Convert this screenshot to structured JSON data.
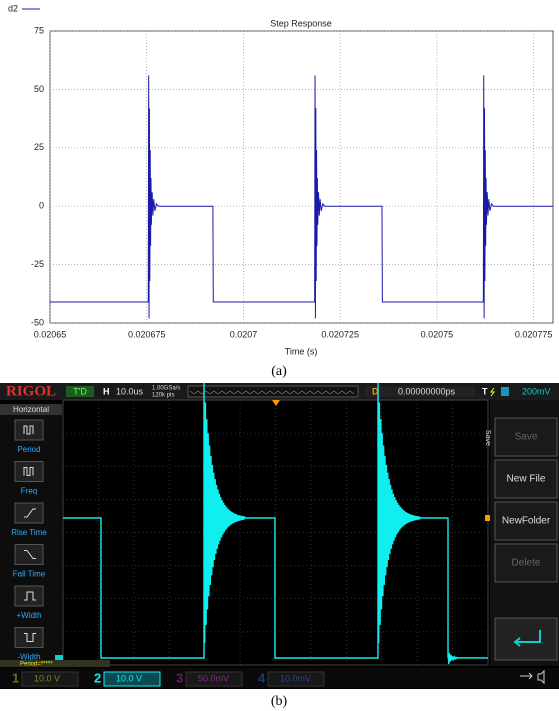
{
  "chart_data": {
    "type": "line",
    "title": "Step Response",
    "xlabel": "Time (s)",
    "x": [
      0.02065,
      0.0206754,
      0.0206755,
      0.0206756,
      0.0206757,
      0.0206758,
      0.0206759,
      0.020676,
      0.0206761,
      0.0206762,
      0.0206764,
      0.0206766,
      0.0206768,
      0.0206771,
      0.0206775,
      0.020678,
      0.0206921,
      0.0206922,
      0.0207184,
      0.0207185,
      0.0207186,
      0.0207187,
      0.0207188,
      0.0207189,
      0.020719,
      0.0207191,
      0.0207192,
      0.0207194,
      0.0207196,
      0.0207198,
      0.0207201,
      0.0207205,
      0.020721,
      0.0207358,
      0.0207359,
      0.020762,
      0.0207621,
      0.0207622,
      0.0207623,
      0.0207624,
      0.0207625,
      0.0207626,
      0.0207627,
      0.0207628,
      0.020763,
      0.0207632,
      0.0207634,
      0.0207637,
      0.0207641,
      0.0207646,
      0.02078
    ],
    "series": [
      {
        "name": "d2",
        "color": "#1a1aa6",
        "values": [
          -41,
          -41,
          56,
          -48,
          42,
          -32,
          24,
          -17,
          12,
          -8,
          6,
          -4,
          3,
          -2,
          1,
          0,
          0,
          -41,
          -41,
          56,
          -48,
          42,
          -32,
          24,
          -17,
          12,
          -8,
          6,
          -4,
          3,
          -2,
          1,
          0,
          0,
          -41,
          -41,
          56,
          -48,
          42,
          -32,
          24,
          -17,
          12,
          -8,
          6,
          -4,
          3,
          -2,
          1,
          0,
          0
        ]
      }
    ],
    "xlim": [
      0.02065,
      0.02078
    ],
    "xticks": [
      0.02065,
      0.020675,
      0.0207,
      0.020725,
      0.02075,
      0.020775
    ],
    "ylim": [
      -50,
      75
    ],
    "yticks": [
      -50,
      -25,
      0,
      25,
      50,
      75
    ],
    "grid": true,
    "legend": "top-left"
  },
  "caption_a": "(a)",
  "scope": {
    "brand": "RIGOL",
    "trigger_status": "T'D",
    "h_label": "H",
    "timebase": "10.0us",
    "sample_rate": "1.00GSa/s",
    "memory_depth": "120k pts",
    "d_label": "D",
    "delay": "0.00000000ps",
    "t_label": "T",
    "trigger_level": "200mV",
    "menu_title": "Horizontal",
    "measure_items": [
      "Period",
      "Freq",
      "Rise Time",
      "Fall Time",
      "+Width",
      "-Width"
    ],
    "side_label": "Save",
    "right_menu": [
      "Save",
      "New File",
      "NewFolder",
      "Delete"
    ],
    "readout": "Period=*****",
    "channels": [
      {
        "num": "1",
        "scale": "10.0 V"
      },
      {
        "num": "2",
        "scale": "10.0 V"
      },
      {
        "num": "3",
        "scale": "50.0mV"
      },
      {
        "num": "4",
        "scale": "10.0mV"
      }
    ]
  },
  "caption_b": "(b)"
}
